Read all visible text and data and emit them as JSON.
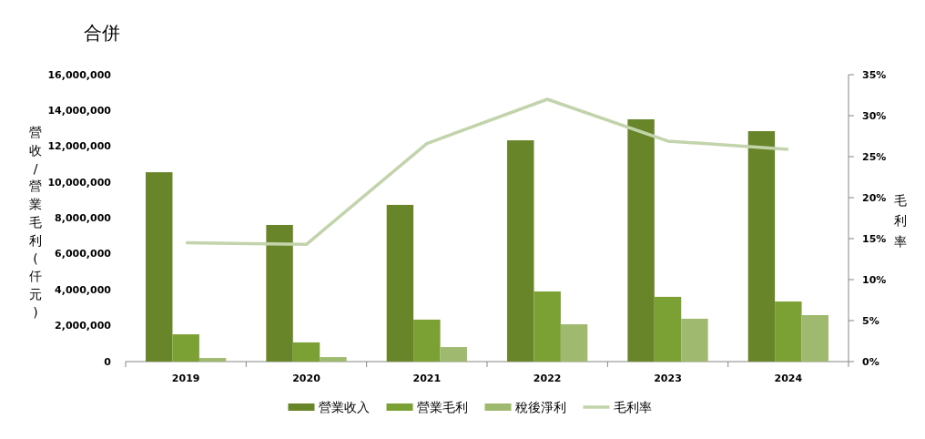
{
  "chart_data": {
    "type": "bar",
    "title": "合併",
    "ylabel": "營收/營業毛利(仟元)",
    "y2label": "毛利率",
    "categories": [
      "2019",
      "2020",
      "2021",
      "2022",
      "2023",
      "2024"
    ],
    "series": [
      {
        "name": "營業收入",
        "color": "#688629",
        "values": [
          10560000,
          7620000,
          8740000,
          12340000,
          13510000,
          12850000
        ]
      },
      {
        "name": "營業毛利",
        "color": "#7ba034",
        "values": [
          1520000,
          1070000,
          2340000,
          3910000,
          3610000,
          3350000
        ]
      },
      {
        "name": "稅後淨利",
        "color": "#9fba6f",
        "values": [
          200000,
          250000,
          810000,
          2080000,
          2390000,
          2590000
        ]
      },
      {
        "name": "毛利率",
        "type": "line",
        "axis": "y2",
        "color": "#c3d4ac",
        "values": [
          14.5,
          14.3,
          26.6,
          32.0,
          26.9,
          25.9
        ]
      }
    ],
    "ylim": [
      0,
      16000000
    ],
    "yticks": [
      0,
      {
        "value": 2000000,
        "label": "2,000,000"
      },
      {
        "value": 4000000,
        "label": "4,000,000"
      },
      {
        "value": 6000000,
        "label": "6,000,000"
      },
      {
        "value": 8000000,
        "label": "8,000,000"
      },
      {
        "value": 10000000,
        "label": "10,000,000"
      },
      {
        "value": 12000000,
        "label": "12,000,000"
      },
      {
        "value": 14000000,
        "label": "14,000,000"
      },
      {
        "value": 16000000,
        "label": "16,000,000"
      }
    ],
    "y2lim": [
      0,
      35
    ],
    "y2ticks": [
      {
        "value": 0,
        "label": "0%"
      },
      {
        "value": 5,
        "label": "5%"
      },
      {
        "value": 10,
        "label": "10%"
      },
      {
        "value": 15,
        "label": "15%"
      },
      {
        "value": 20,
        "label": "20%"
      },
      {
        "value": 25,
        "label": "25%"
      },
      {
        "value": 30,
        "label": "30%"
      },
      {
        "value": 35,
        "label": "35%"
      }
    ],
    "legend": "bottom"
  }
}
